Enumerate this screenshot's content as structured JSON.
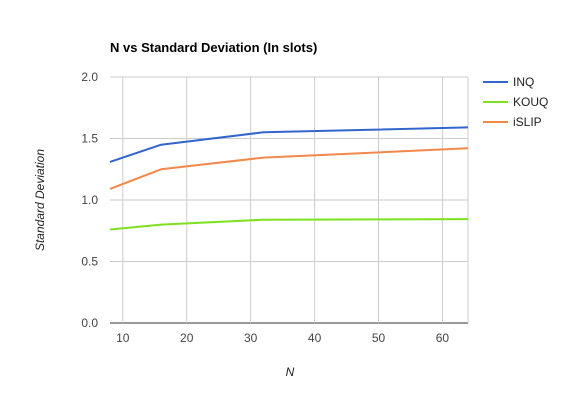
{
  "chart_data": {
    "type": "line",
    "title": "N vs Standard Deviation (In slots)",
    "xlabel": "N",
    "ylabel": "Standard Deviation",
    "xlim": [
      8,
      64
    ],
    "ylim": [
      0,
      2
    ],
    "x": [
      8,
      16,
      32,
      64
    ],
    "xticks": [
      10,
      20,
      30,
      40,
      50,
      60
    ],
    "xtick_labels": [
      "10",
      "20",
      "30",
      "40",
      "50",
      "60"
    ],
    "yticks": [
      0,
      0.5,
      1,
      1.5,
      2
    ],
    "ytick_labels": [
      "0.0",
      "0.5",
      "1.0",
      "1.5",
      "2.0"
    ],
    "grid": true,
    "legend_position": "right",
    "series": [
      {
        "name": "INQ",
        "color": "#3366cc",
        "values": [
          1.31,
          1.45,
          1.55,
          1.59
        ]
      },
      {
        "name": "KOUQ",
        "color": "#7ee11f",
        "values": [
          0.76,
          0.8,
          0.84,
          0.845
        ]
      },
      {
        "name": "iSLIP",
        "color": "#f2884b",
        "values": [
          1.09,
          1.25,
          1.345,
          1.42
        ]
      }
    ]
  }
}
